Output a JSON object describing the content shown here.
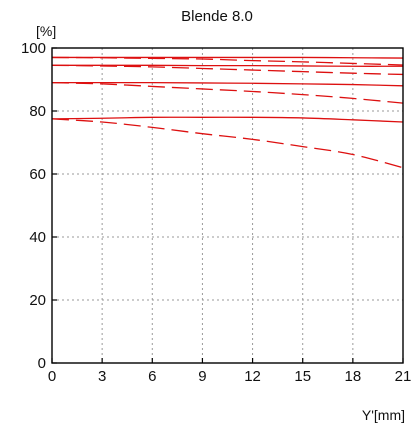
{
  "chart_data": {
    "type": "line",
    "title": "Blende 8.0",
    "ylabel": "[%]",
    "xlabel": "Y'[mm]",
    "xlim": [
      0,
      21
    ],
    "ylim": [
      0,
      100
    ],
    "x_ticks": [
      "0",
      "3",
      "6",
      "9",
      "12",
      "15",
      "18",
      "21"
    ],
    "y_ticks": [
      "0",
      "20",
      "40",
      "60",
      "80",
      "100"
    ],
    "grid": true,
    "line_color": "#dd1010",
    "x": [
      0,
      3,
      6,
      9,
      12,
      15,
      18,
      21
    ],
    "series": [
      {
        "style": "solid",
        "values": [
          97.0,
          97.0,
          97.0,
          97.0,
          97.0,
          97.0,
          96.9,
          96.8
        ]
      },
      {
        "style": "dashed",
        "values": [
          97.0,
          96.9,
          96.7,
          96.5,
          96.0,
          95.6,
          95.1,
          94.6
        ]
      },
      {
        "style": "solid",
        "values": [
          94.5,
          94.5,
          94.5,
          94.4,
          94.4,
          94.3,
          94.2,
          94.2
        ]
      },
      {
        "style": "dashed",
        "values": [
          94.5,
          94.3,
          94.0,
          93.5,
          93.0,
          92.5,
          92.0,
          91.6
        ]
      },
      {
        "style": "solid",
        "values": [
          89.0,
          89.0,
          89.0,
          88.9,
          88.8,
          88.6,
          88.4,
          88.0
        ]
      },
      {
        "style": "dashed",
        "values": [
          89.0,
          88.6,
          87.8,
          87.0,
          86.2,
          85.2,
          84.0,
          82.5
        ]
      },
      {
        "style": "solid",
        "values": [
          77.5,
          77.7,
          78.0,
          78.0,
          78.0,
          77.8,
          77.2,
          76.5
        ]
      },
      {
        "style": "dashed",
        "values": [
          77.5,
          76.5,
          74.8,
          72.8,
          71.0,
          68.7,
          66.2,
          62.0
        ]
      }
    ]
  }
}
